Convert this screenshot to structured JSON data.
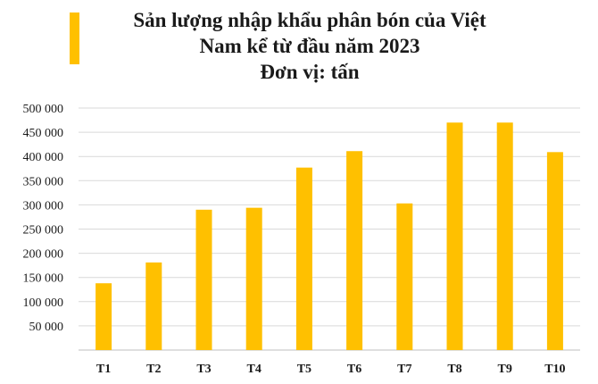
{
  "chart_data": {
    "type": "bar",
    "title_lines": [
      "Sản lượng nhập khẩu phân bón của Việt",
      "Nam kể từ đầu năm 2023",
      "Đơn vị: tấn"
    ],
    "categories": [
      "T1",
      "T2",
      "T3",
      "T4",
      "T5",
      "T6",
      "T7",
      "T8",
      "T9",
      "T10"
    ],
    "values": [
      138000,
      181000,
      290000,
      294000,
      377000,
      411000,
      303000,
      470000,
      470000,
      409000
    ],
    "ylim": [
      0,
      500000
    ],
    "yticks": [
      50000,
      100000,
      150000,
      200000,
      250000,
      300000,
      350000,
      400000,
      450000,
      500000
    ],
    "ytick_labels": [
      "50 000",
      "100 000",
      "150 000",
      "200 000",
      "250 000",
      "300 000",
      "350 000",
      "400 000",
      "450 000",
      "500 000"
    ],
    "grid": true,
    "legend": "none"
  },
  "colors": {
    "bar": "#FFC000",
    "grid": "#d9d9d9",
    "axis": "#bfbfbf"
  }
}
